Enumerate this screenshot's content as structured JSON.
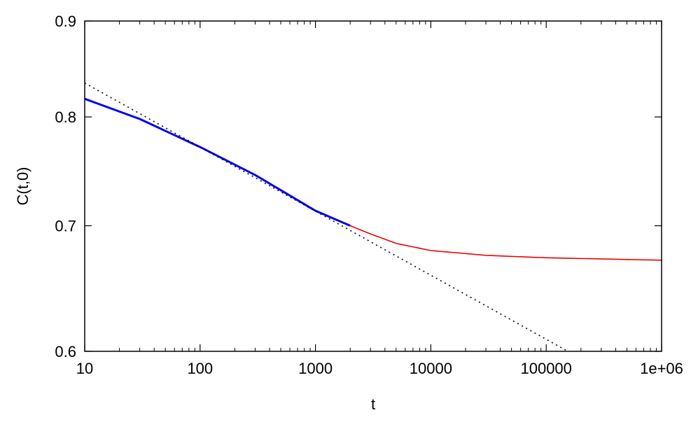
{
  "chart_data": {
    "type": "line",
    "title": "",
    "xlabel": "t",
    "ylabel": "C(t,0)",
    "xscale": "log",
    "yscale": "log",
    "xlim": [
      10,
      1000000
    ],
    "ylim": [
      0.6,
      0.9
    ],
    "xticks": [
      10,
      100,
      1000,
      10000,
      100000,
      1000000
    ],
    "xtick_labels": [
      "10",
      "100",
      "1000",
      "10000",
      "100000",
      "1e+06"
    ],
    "yticks": [
      0.6,
      0.7,
      0.8,
      0.9
    ],
    "ytick_labels": [
      "0.6",
      "0.7",
      "0.8",
      "0.9"
    ],
    "grid": false,
    "series": [
      {
        "style": "solid-thick",
        "color": "#0000ee",
        "x": [
          10,
          30,
          100,
          300,
          1000,
          2000
        ],
        "y": [
          0.818,
          0.798,
          0.771,
          0.745,
          0.713,
          0.7
        ]
      },
      {
        "style": "solid",
        "color": "#ee0000",
        "x": [
          2000,
          3000,
          5000,
          10000,
          30000,
          100000,
          1000000
        ],
        "y": [
          0.7,
          0.693,
          0.685,
          0.679,
          0.675,
          0.673,
          0.671
        ]
      },
      {
        "style": "dotted",
        "color": "#000000",
        "x": [
          10,
          154000
        ],
        "y": [
          0.834,
          0.6
        ]
      }
    ]
  }
}
